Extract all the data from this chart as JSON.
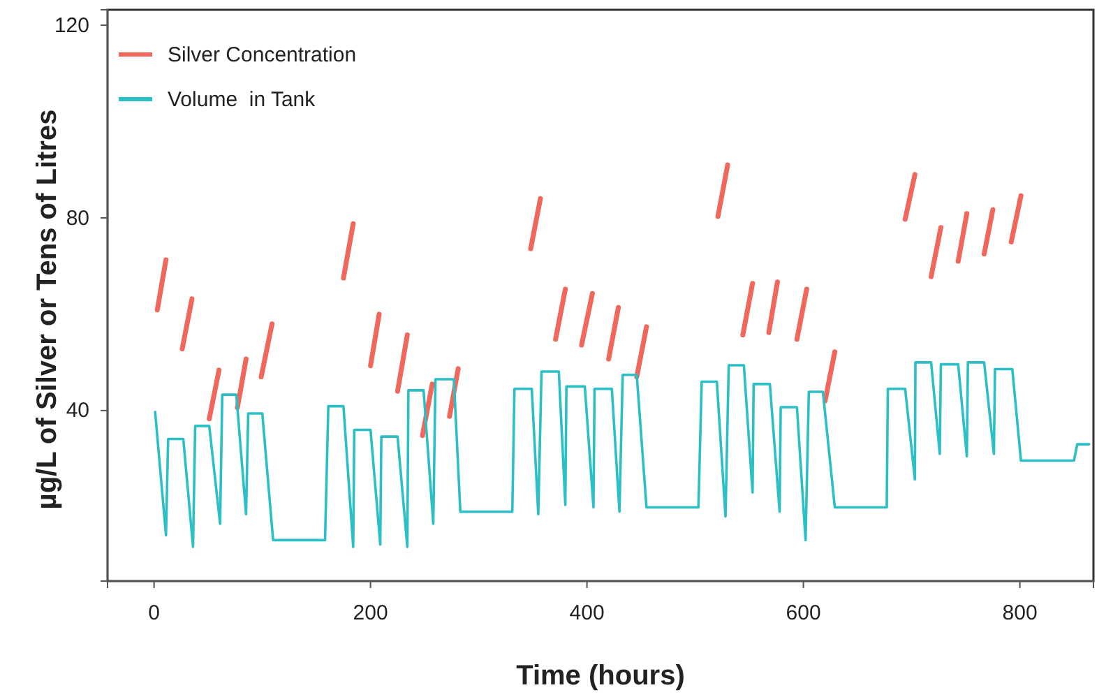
{
  "chart_data": {
    "type": "line",
    "xlabel": "Time (hours)",
    "ylabel": "µg/L of Silver or Tens of Litres",
    "xlim": [
      -43,
      868
    ],
    "ylim": [
      4.6,
      123.2
    ],
    "xticks": [
      0,
      200,
      400,
      600,
      800
    ],
    "yticks": [
      40,
      80,
      120
    ],
    "grid": false,
    "legend": "top left",
    "marker": "none",
    "line_style": "solid",
    "series": [
      {
        "name": "Silver Concentration",
        "color": "#f0675c",
        "x": [
          3,
          11,
          18,
          26,
          35,
          43,
          51,
          60,
          68,
          77,
          85,
          92,
          99,
          109,
          142,
          175,
          184,
          192,
          200,
          208,
          216,
          225,
          234,
          241,
          248,
          257,
          265,
          273,
          281,
          314,
          348,
          357,
          364,
          371,
          380,
          388,
          395,
          405,
          412,
          420,
          429,
          437,
          446,
          455,
          488,
          521,
          530,
          537,
          544,
          553,
          560,
          568,
          576,
          585,
          594,
          603,
          611,
          620,
          629,
          661,
          694,
          703,
          710,
          718,
          727,
          735,
          743,
          751,
          759,
          767,
          775,
          783,
          792,
          801
        ],
        "values": [
          60.9,
          71.3,
          null,
          52.8,
          63.2,
          null,
          38.3,
          48.4,
          null,
          40.6,
          50.7,
          null,
          47,
          58,
          null,
          67.5,
          78.8,
          null,
          49.3,
          60,
          null,
          44,
          55.7,
          null,
          34.8,
          45.5,
          null,
          38.8,
          48.7,
          null,
          73.6,
          84,
          null,
          54.8,
          65.2,
          null,
          53.6,
          64.3,
          null,
          50.7,
          61.4,
          null,
          47,
          57.4,
          null,
          80.3,
          91,
          null,
          55.7,
          66.4,
          null,
          56.2,
          66.7,
          null,
          54.8,
          65.2,
          null,
          42,
          52.2,
          null,
          79.7,
          89,
          null,
          67.8,
          78,
          null,
          71,
          80.9,
          null,
          72.5,
          81.7,
          null,
          75,
          84.6
        ]
      },
      {
        "name": "Volume  in Tank",
        "color": "#2cbfc6",
        "x": [
          1,
          11,
          13,
          27,
          36,
          38,
          51,
          61,
          63,
          76,
          85,
          87,
          100,
          110,
          158,
          161,
          175,
          184,
          185,
          200,
          209,
          210,
          225,
          234,
          235,
          249,
          258,
          260,
          277,
          283,
          331,
          333,
          349,
          355,
          358,
          374,
          380,
          381,
          398,
          406,
          407,
          423,
          430,
          433,
          446,
          455,
          503,
          506,
          520,
          528,
          531,
          545,
          553,
          554,
          569,
          578,
          579,
          594,
          602,
          605,
          618,
          629,
          677,
          678,
          694,
          703,
          703.5,
          718,
          726,
          727,
          743,
          751,
          752,
          767,
          776,
          777,
          793,
          801,
          850,
          853,
          864
        ],
        "values": [
          39.7,
          14.1,
          34.1,
          34.1,
          11.7,
          36.8,
          36.8,
          16.5,
          43.3,
          43.3,
          18.5,
          39.4,
          39.4,
          13.1,
          13.1,
          40.9,
          40.9,
          11.7,
          36,
          36,
          12.2,
          34.6,
          34.6,
          11.7,
          44.2,
          44.2,
          16.5,
          46.5,
          46.5,
          19,
          19,
          44.5,
          44.5,
          18.5,
          48.1,
          48.1,
          20.4,
          45,
          45,
          19.9,
          44.5,
          44.5,
          19,
          47.4,
          47.4,
          19.9,
          19.9,
          46,
          46,
          18,
          49.4,
          49.4,
          23,
          45.5,
          45.5,
          19,
          40.7,
          40.7,
          13.1,
          43.9,
          43.9,
          19.9,
          19.9,
          44.5,
          44.5,
          25.7,
          50,
          50,
          31,
          49.6,
          49.6,
          30.5,
          50,
          50,
          31,
          48.6,
          48.6,
          29.6,
          29.6,
          33,
          33
        ]
      }
    ]
  }
}
